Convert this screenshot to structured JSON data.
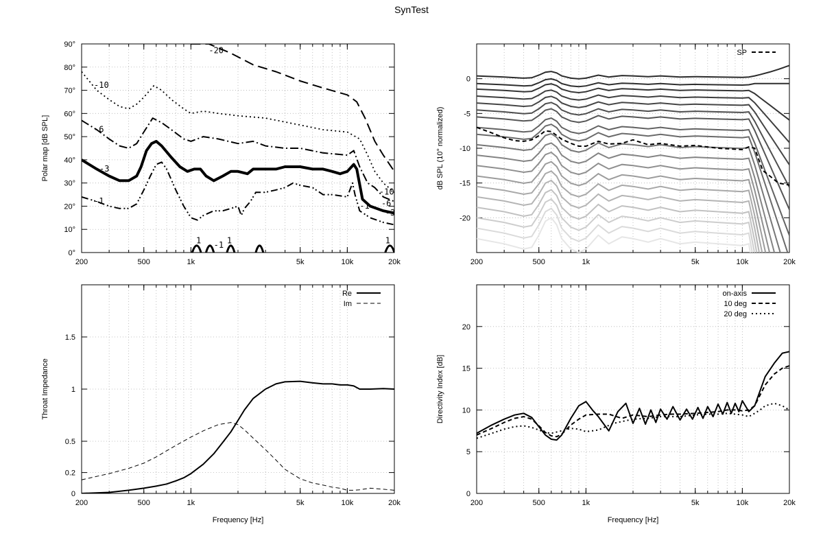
{
  "title": "SynTest",
  "chart_data": [
    {
      "type": "contour",
      "ylabel": "Polar map [dB SPL]",
      "xscale": "log",
      "xlim": [
        200,
        20000
      ],
      "ylim": [
        0,
        90
      ],
      "x_ticks": [
        200,
        500,
        1000,
        5000,
        10000,
        20000
      ],
      "x_tick_labels": [
        "200",
        "500",
        "1k",
        "5k",
        "10k",
        "20k"
      ],
      "y_ticks": [
        0,
        10,
        20,
        30,
        40,
        50,
        60,
        70,
        80,
        90
      ],
      "y_tick_labels": [
        "0°",
        "10°",
        "20°",
        "30°",
        "40°",
        "50°",
        "60°",
        "70°",
        "80°",
        "90°"
      ],
      "grid": true,
      "contours": [
        {
          "level": "-20",
          "style": "long-dash",
          "width": 2,
          "x": [
            1000,
            1300,
            1800,
            2500,
            3500,
            5000,
            7000,
            10000,
            11500,
            13000,
            15000,
            17000,
            20000
          ],
          "y": [
            90,
            90,
            86,
            81,
            78,
            74,
            71,
            68,
            65,
            58,
            48,
            42,
            35
          ]
        },
        {
          "level": "-10",
          "style": "dotted",
          "width": 1.8,
          "x": [
            200,
            250,
            300,
            350,
            400,
            450,
            500,
            580,
            650,
            750,
            900,
            1000,
            1200,
            1500,
            2000,
            3000,
            5000,
            7000,
            10000,
            12000,
            13500,
            15000,
            17000,
            20000
          ],
          "y": [
            78,
            70,
            66,
            63,
            62,
            64,
            67,
            72,
            70,
            66,
            62,
            60,
            61,
            60,
            59,
            58,
            55,
            53,
            52,
            49,
            42,
            35,
            30,
            26
          ]
        },
        {
          "level": "-6",
          "style": "dash-dot",
          "width": 2,
          "x": [
            200,
            250,
            300,
            350,
            400,
            450,
            500,
            570,
            650,
            750,
            900,
            1000,
            1200,
            1500,
            2000,
            2500,
            3000,
            4000,
            5000,
            7000,
            10000,
            11000,
            12000,
            13500,
            15000,
            17000,
            20000
          ],
          "y": [
            57,
            53,
            49,
            46,
            45,
            47,
            52,
            58,
            56,
            53,
            49,
            48,
            50,
            49,
            47,
            48,
            46,
            45,
            45,
            43,
            42,
            44,
            37,
            30,
            28,
            24,
            22
          ]
        },
        {
          "level": "-3",
          "style": "solid",
          "width": 4,
          "x": [
            200,
            250,
            300,
            350,
            400,
            450,
            480,
            520,
            560,
            600,
            650,
            750,
            850,
            950,
            1050,
            1150,
            1250,
            1400,
            1600,
            1800,
            2000,
            2300,
            2500,
            3000,
            3500,
            4000,
            5000,
            6000,
            7000,
            8000,
            9000,
            10000,
            11000,
            11500,
            12500,
            14000,
            17000,
            20000
          ],
          "y": [
            40,
            36,
            33,
            31,
            31,
            33,
            37,
            44,
            47,
            48,
            46,
            41,
            37,
            35,
            36,
            36,
            33,
            31,
            33,
            35,
            35,
            34,
            36,
            36,
            36,
            37,
            37,
            36,
            36,
            35,
            34,
            35,
            38,
            36,
            23,
            20,
            18,
            17
          ]
        },
        {
          "level": "-1",
          "style": "dash-dot-dot",
          "width": 2,
          "x": [
            200,
            250,
            300,
            350,
            400,
            450,
            500,
            550,
            600,
            650,
            700,
            800,
            900,
            1000,
            1100,
            1200,
            1400,
            1600,
            1800,
            2000,
            2100,
            2200,
            2400,
            2600,
            3000,
            3500,
            4000,
            4500,
            5000,
            6000,
            7000,
            8000,
            10000,
            10800,
            11200,
            12000,
            14000,
            17000,
            20000
          ],
          "y": [
            24,
            22,
            20,
            19,
            19,
            21,
            27,
            33,
            38,
            39,
            36,
            27,
            20,
            15,
            14,
            16,
            18,
            18,
            19,
            20,
            16,
            19,
            22,
            26,
            26,
            27,
            28,
            30,
            29,
            28,
            25,
            25,
            24,
            30,
            25,
            18,
            15,
            13,
            12
          ]
        }
      ],
      "contour_labels": [
        "-20",
        "-10",
        "-6",
        "-3",
        "-1",
        "-10",
        "-6",
        "-3",
        "-1",
        "1",
        "-1",
        "1",
        "1"
      ]
    },
    {
      "type": "line",
      "ylabel": "dB SPL (10° normalized)",
      "xscale": "log",
      "xlim": [
        200,
        20000
      ],
      "ylim": [
        -25,
        5
      ],
      "x_ticks": [
        200,
        500,
        1000,
        5000,
        10000,
        20000
      ],
      "x_tick_labels": [
        "200",
        "500",
        "1k",
        "5k",
        "10k",
        "20k"
      ],
      "y_ticks": [
        0,
        -5,
        -10,
        -15,
        -20
      ],
      "y_tick_labels": [
        "0",
        "-5",
        "-10",
        "-15",
        "-20"
      ],
      "grid": true,
      "legend": {
        "position": "top-right",
        "entries": [
          "SP"
        ]
      },
      "series": [
        {
          "name": "SP",
          "style": "dashed",
          "x": [
            200,
            250,
            300,
            350,
            400,
            450,
            500,
            550,
            600,
            700,
            800,
            900,
            1000,
            1200,
            1400,
            1700,
            2000,
            2500,
            3000,
            4000,
            5000,
            7000,
            10000,
            11000,
            12000,
            13500,
            15000,
            17000,
            20000
          ],
          "y": [
            -7,
            -7.8,
            -8.5,
            -8.9,
            -9,
            -8.8,
            -8.2,
            -7.5,
            -7.6,
            -8.7,
            -9.3,
            -9.7,
            -9.7,
            -9,
            -9.4,
            -9.3,
            -8.8,
            -9.5,
            -9.3,
            -9.7,
            -9.6,
            -10,
            -10.2,
            -9.8,
            -10,
            -13.2,
            -14,
            -15,
            -15.3
          ]
        }
      ],
      "family": {
        "description_levels_db": [
          0.4,
          -0.7,
          -1.5,
          -2.5,
          -3.5,
          -4.5,
          -5.5,
          -7,
          -8,
          -9.5,
          -11,
          -12.5,
          -14,
          -15.5,
          -17,
          -18.5,
          -20,
          -21.5,
          -23
        ]
      }
    },
    {
      "type": "line",
      "xlabel": "Frequency [Hz]",
      "ylabel": "Throat Impedance",
      "xscale": "log",
      "xlim": [
        200,
        20000
      ],
      "ylim": [
        0,
        2
      ],
      "x_ticks": [
        200,
        500,
        1000,
        5000,
        10000,
        20000
      ],
      "x_tick_labels": [
        "200",
        "500",
        "1k",
        "5k",
        "10k",
        "20k"
      ],
      "y_ticks": [
        0,
        0.2,
        0.5,
        1,
        1.5
      ],
      "y_tick_labels": [
        "0",
        "0.2",
        "0.5",
        "1",
        "1.5"
      ],
      "grid": true,
      "legend": {
        "position": "top-right",
        "entries": [
          "Re",
          "Im"
        ]
      },
      "series": [
        {
          "name": "Re",
          "style": "solid",
          "x": [
            200,
            300,
            400,
            500,
            600,
            700,
            800,
            900,
            1000,
            1200,
            1400,
            1600,
            1800,
            2000,
            2200,
            2500,
            3000,
            3500,
            4000,
            5000,
            6000,
            7000,
            8000,
            9000,
            10000,
            11000,
            12000,
            14000,
            17000,
            20000
          ],
          "y": [
            0,
            0.01,
            0.03,
            0.05,
            0.07,
            0.09,
            0.12,
            0.15,
            0.19,
            0.28,
            0.38,
            0.49,
            0.59,
            0.7,
            0.8,
            0.91,
            1.0,
            1.05,
            1.07,
            1.075,
            1.06,
            1.05,
            1.05,
            1.04,
            1.04,
            1.03,
            1.0,
            1.0,
            1.005,
            1.0
          ]
        },
        {
          "name": "Im",
          "style": "dashed",
          "x": [
            200,
            300,
            400,
            500,
            600,
            800,
            1000,
            1200,
            1500,
            1800,
            2000,
            2200,
            2500,
            3000,
            3500,
            4000,
            5000,
            6000,
            7000,
            8000,
            9000,
            10000,
            11000,
            12000,
            14000,
            17000,
            20000
          ],
          "y": [
            0.13,
            0.19,
            0.24,
            0.29,
            0.35,
            0.46,
            0.54,
            0.6,
            0.66,
            0.68,
            0.66,
            0.61,
            0.53,
            0.42,
            0.32,
            0.23,
            0.14,
            0.1,
            0.08,
            0.06,
            0.05,
            0.03,
            0.03,
            0.035,
            0.05,
            0.04,
            0.03
          ]
        }
      ]
    },
    {
      "type": "line",
      "xlabel": "Frequency [Hz]",
      "ylabel": "Directivity Index [dB]",
      "xscale": "log",
      "xlim": [
        200,
        20000
      ],
      "ylim": [
        0,
        25
      ],
      "x_ticks": [
        200,
        500,
        1000,
        5000,
        10000,
        20000
      ],
      "x_tick_labels": [
        "200",
        "500",
        "1k",
        "5k",
        "10k",
        "20k"
      ],
      "y_ticks": [
        0,
        5,
        10,
        15,
        20
      ],
      "y_tick_labels": [
        "0",
        "5",
        "10",
        "15",
        "20"
      ],
      "grid": true,
      "legend": {
        "position": "top-right",
        "entries": [
          "on-axis",
          "10 deg",
          "20 deg"
        ]
      },
      "series": [
        {
          "name": "on-axis",
          "style": "solid",
          "x": [
            200,
            250,
            300,
            350,
            400,
            450,
            500,
            550,
            600,
            650,
            700,
            800,
            900,
            1000,
            1100,
            1200,
            1400,
            1600,
            1800,
            2000,
            2200,
            2400,
            2600,
            2800,
            3000,
            3300,
            3600,
            4000,
            4400,
            4800,
            5200,
            5600,
            6000,
            6500,
            7000,
            7500,
            8000,
            8500,
            9000,
            9500,
            10000,
            11000,
            12000,
            14000,
            16000,
            18000,
            20000
          ],
          "y": [
            7.2,
            8.2,
            8.9,
            9.4,
            9.6,
            9.1,
            8,
            7,
            6.5,
            6.4,
            7,
            9,
            10.5,
            11,
            10,
            9.2,
            7.5,
            9.8,
            10.8,
            8.4,
            10.2,
            8.3,
            10,
            8.5,
            10.1,
            8.9,
            10.4,
            8.8,
            10.1,
            8.9,
            10.3,
            9,
            10.4,
            9.2,
            10.7,
            9.5,
            10.9,
            9.6,
            10.8,
            9.8,
            11.1,
            9.8,
            10.5,
            14,
            15.6,
            16.8,
            17
          ]
        },
        {
          "name": "10 deg",
          "style": "dashed",
          "x": [
            200,
            250,
            300,
            350,
            400,
            450,
            500,
            550,
            600,
            650,
            700,
            800,
            900,
            1000,
            1200,
            1400,
            1700,
            2000,
            2500,
            3000,
            3500,
            4000,
            5000,
            6000,
            7000,
            8000,
            9000,
            10000,
            11000,
            12000,
            14000,
            16000,
            18000,
            20000
          ],
          "y": [
            7,
            7.8,
            8.5,
            9,
            9.2,
            8.9,
            8.1,
            7.3,
            6.9,
            6.8,
            7.1,
            8.2,
            8.9,
            9.4,
            9.5,
            9.5,
            9,
            9.4,
            9.2,
            9.4,
            9.5,
            9.5,
            9.6,
            9.7,
            9.8,
            10,
            10,
            9.9,
            10,
            10.5,
            13,
            14.3,
            15,
            15.3
          ]
        },
        {
          "name": "20 deg",
          "style": "dotted",
          "x": [
            200,
            250,
            300,
            350,
            400,
            450,
            500,
            550,
            600,
            700,
            800,
            900,
            1000,
            1200,
            1500,
            2000,
            2500,
            3000,
            4000,
            5000,
            6000,
            7000,
            8000,
            9000,
            10000,
            11000,
            12000,
            13000,
            14000,
            16000,
            18000,
            20000
          ],
          "y": [
            6.6,
            7.2,
            7.7,
            8,
            8.1,
            7.9,
            7.6,
            7.3,
            7.2,
            7.5,
            7.8,
            7.7,
            7.4,
            7.6,
            8.4,
            8.9,
            9,
            9.2,
            9.2,
            9.4,
            9.5,
            9.5,
            9.6,
            9.5,
            9.4,
            9.2,
            9.6,
            10,
            10.5,
            10.8,
            10.5,
            10
          ]
        }
      ]
    }
  ]
}
